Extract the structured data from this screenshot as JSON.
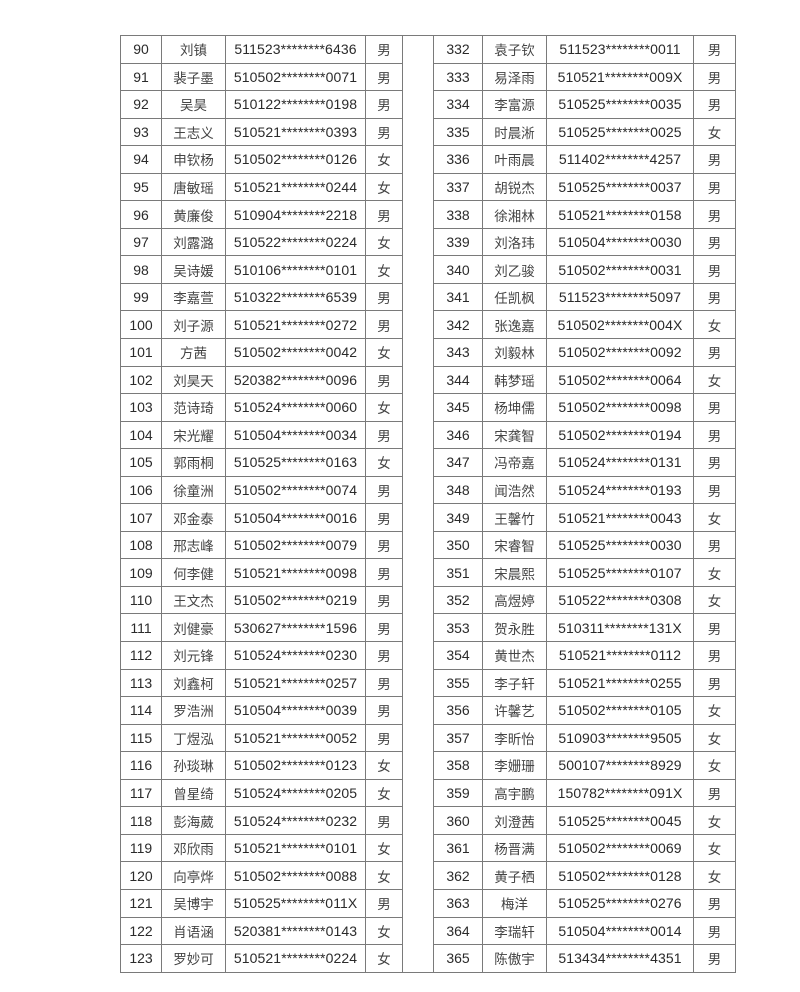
{
  "left": [
    [
      "90",
      "刘镇",
      "511523********6436",
      "男"
    ],
    [
      "91",
      "裴子墨",
      "510502********0071",
      "男"
    ],
    [
      "92",
      "吴昊",
      "510122********0198",
      "男"
    ],
    [
      "93",
      "王志义",
      "510521********0393",
      "男"
    ],
    [
      "94",
      "申钦杨",
      "510502********0126",
      "女"
    ],
    [
      "95",
      "唐敏瑶",
      "510521********0244",
      "女"
    ],
    [
      "96",
      "黄廉俊",
      "510904********2218",
      "男"
    ],
    [
      "97",
      "刘露潞",
      "510522********0224",
      "女"
    ],
    [
      "98",
      "吴诗媛",
      "510106********0101",
      "女"
    ],
    [
      "99",
      "李嘉萱",
      "510322********6539",
      "男"
    ],
    [
      "100",
      "刘子源",
      "510521********0272",
      "男"
    ],
    [
      "101",
      "方茜",
      "510502********0042",
      "女"
    ],
    [
      "102",
      "刘昊天",
      "520382********0096",
      "男"
    ],
    [
      "103",
      "范诗琦",
      "510524********0060",
      "女"
    ],
    [
      "104",
      "宋光耀",
      "510504********0034",
      "男"
    ],
    [
      "105",
      "郭雨桐",
      "510525********0163",
      "女"
    ],
    [
      "106",
      "徐童洲",
      "510502********0074",
      "男"
    ],
    [
      "107",
      "邓金泰",
      "510504********0016",
      "男"
    ],
    [
      "108",
      "邢志峰",
      "510502********0079",
      "男"
    ],
    [
      "109",
      "何李健",
      "510521********0098",
      "男"
    ],
    [
      "110",
      "王文杰",
      "510502********0219",
      "男"
    ],
    [
      "111",
      "刘健豪",
      "530627********1596",
      "男"
    ],
    [
      "112",
      "刘元锋",
      "510524********0230",
      "男"
    ],
    [
      "113",
      "刘鑫柯",
      "510521********0257",
      "男"
    ],
    [
      "114",
      "罗浩洲",
      "510504********0039",
      "男"
    ],
    [
      "115",
      "丁煜泓",
      "510521********0052",
      "男"
    ],
    [
      "116",
      "孙琰琳",
      "510502********0123",
      "女"
    ],
    [
      "117",
      "曾星绮",
      "510524********0205",
      "女"
    ],
    [
      "118",
      "彭海葳",
      "510524********0232",
      "男"
    ],
    [
      "119",
      "邓欣雨",
      "510521********0101",
      "女"
    ],
    [
      "120",
      "向亭烨",
      "510502********0088",
      "女"
    ],
    [
      "121",
      "吴博宇",
      "510525********011X",
      "男"
    ],
    [
      "122",
      "肖语涵",
      "520381********0143",
      "女"
    ],
    [
      "123",
      "罗妙可",
      "510521********0224",
      "女"
    ]
  ],
  "right": [
    [
      "332",
      "袁子钦",
      "511523********0011",
      "男"
    ],
    [
      "333",
      "易泽雨",
      "510521********009X",
      "男"
    ],
    [
      "334",
      "李富源",
      "510525********0035",
      "男"
    ],
    [
      "335",
      "时晨淅",
      "510525********0025",
      "女"
    ],
    [
      "336",
      "叶雨晨",
      "511402********4257",
      "男"
    ],
    [
      "337",
      "胡锐杰",
      "510525********0037",
      "男"
    ],
    [
      "338",
      "徐湘林",
      "510521********0158",
      "男"
    ],
    [
      "339",
      "刘洛玮",
      "510504********0030",
      "男"
    ],
    [
      "340",
      "刘乙骏",
      "510502********0031",
      "男"
    ],
    [
      "341",
      "任凯枫",
      "511523********5097",
      "男"
    ],
    [
      "342",
      "张逸嘉",
      "510502********004X",
      "女"
    ],
    [
      "343",
      "刘毅林",
      "510502********0092",
      "男"
    ],
    [
      "344",
      "韩梦瑶",
      "510502********0064",
      "女"
    ],
    [
      "345",
      "杨坤儒",
      "510502********0098",
      "男"
    ],
    [
      "346",
      "宋龚智",
      "510502********0194",
      "男"
    ],
    [
      "347",
      "冯帝嘉",
      "510524********0131",
      "男"
    ],
    [
      "348",
      "闻浩然",
      "510524********0193",
      "男"
    ],
    [
      "349",
      "王馨竹",
      "510521********0043",
      "女"
    ],
    [
      "350",
      "宋睿智",
      "510525********0030",
      "男"
    ],
    [
      "351",
      "宋晨熙",
      "510525********0107",
      "女"
    ],
    [
      "352",
      "高煜婷",
      "510522********0308",
      "女"
    ],
    [
      "353",
      "贺永胜",
      "510311********131X",
      "男"
    ],
    [
      "354",
      "黄世杰",
      "510521********0112",
      "男"
    ],
    [
      "355",
      "李子轩",
      "510521********0255",
      "男"
    ],
    [
      "356",
      "许馨艺",
      "510502********0105",
      "女"
    ],
    [
      "357",
      "李昕怡",
      "510903********9505",
      "女"
    ],
    [
      "358",
      "李姗珊",
      "500107********8929",
      "女"
    ],
    [
      "359",
      "高宇鹏",
      "150782********091X",
      "男"
    ],
    [
      "360",
      "刘澄茜",
      "510525********0045",
      "女"
    ],
    [
      "361",
      "杨晋满",
      "510502********0069",
      "女"
    ],
    [
      "362",
      "黄子栖",
      "510502********0128",
      "女"
    ],
    [
      "363",
      "梅洋",
      "510525********0276",
      "男"
    ],
    [
      "364",
      "李瑞轩",
      "510504********0014",
      "男"
    ],
    [
      "365",
      "陈傲宇",
      "513434********4351",
      "男"
    ]
  ]
}
